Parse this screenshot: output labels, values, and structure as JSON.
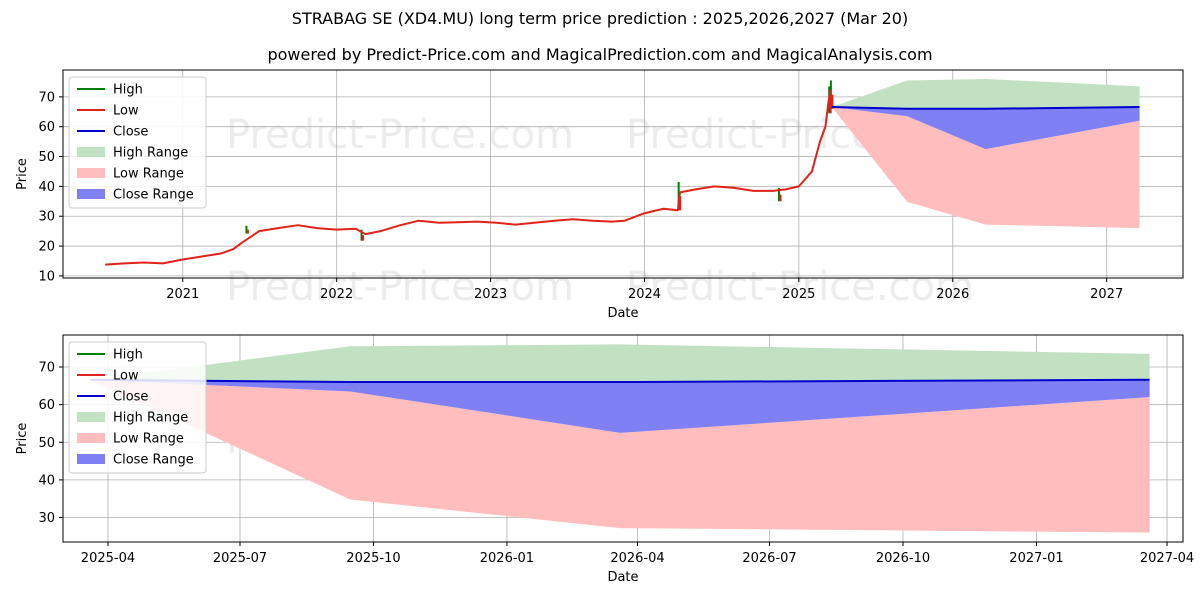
{
  "title": "STRABAG SE (XD4.MU) long term price prediction : 2025,2026,2027 (Mar 20)",
  "subtitle": "powered by Predict-Price.com and MagicalPrediction.com and MagicalAnalysis.com",
  "watermark": "Predict-Price.com",
  "colors": {
    "high": "#008000",
    "low": "#e0231a",
    "close": "#0000cc",
    "high_range": "#c2e0c2",
    "low_range": "#ffbdbd",
    "close_range": "#8080f5"
  },
  "legend": {
    "position": "top-left",
    "entries": [
      "High",
      "Low",
      "Close",
      "High Range",
      "Low Range",
      "Close Range"
    ]
  },
  "chart_data": [
    {
      "type": "line",
      "xlabel": "Date",
      "ylabel": "Price",
      "xlim": [
        "2020-03-23",
        "2027-07-01"
      ],
      "ylim": [
        9.3,
        79
      ],
      "xticks": [
        "2021",
        "2022",
        "2023",
        "2024",
        "2025",
        "2026",
        "2027"
      ],
      "xtick_dates": [
        "2021-01-01",
        "2022-01-01",
        "2023-01-01",
        "2024-01-01",
        "2025-01-01",
        "2026-01-01",
        "2027-01-01"
      ],
      "yticks": [
        10,
        20,
        30,
        40,
        50,
        60,
        70
      ],
      "grid": true,
      "history": {
        "dates": [
          "2020-07-01",
          "2020-08-15",
          "2020-10-01",
          "2020-11-15",
          "2021-01-01",
          "2021-02-15",
          "2021-04-01",
          "2021-05-01",
          "2021-05-20",
          "2021-07-01",
          "2021-08-15",
          "2021-10-01",
          "2021-11-15",
          "2022-01-01",
          "2022-02-15",
          "2022-03-10",
          "2022-04-15",
          "2022-06-01",
          "2022-07-15",
          "2022-09-01",
          "2022-10-15",
          "2022-12-01",
          "2023-01-15",
          "2023-03-01",
          "2023-04-15",
          "2023-06-01",
          "2023-07-15",
          "2023-09-01",
          "2023-10-15",
          "2023-11-15",
          "2024-01-01",
          "2024-02-15",
          "2024-03-20",
          "2024-03-25",
          "2024-05-01",
          "2024-06-15",
          "2024-08-01",
          "2024-09-15",
          "2024-11-01",
          "2024-12-01",
          "2025-01-01",
          "2025-02-01",
          "2025-02-20",
          "2025-03-05",
          "2025-03-12",
          "2025-03-17",
          "2025-03-20"
        ],
        "close": [
          13.8,
          14.2,
          14.5,
          14.2,
          15.5,
          16.5,
          17.5,
          19,
          21,
          25,
          26,
          27,
          26,
          25.5,
          25.8,
          24,
          25,
          27,
          28.5,
          27.8,
          28,
          28.2,
          27.8,
          27.2,
          27.8,
          28.5,
          29,
          28.5,
          28.2,
          28.5,
          31,
          32.5,
          32,
          38,
          39,
          40,
          39.5,
          38.5,
          38.5,
          39,
          40,
          45,
          55,
          60,
          68,
          72,
          66.6
        ],
        "spikes": [
          {
            "date": "2021-06-01",
            "low": 24.2,
            "high": 26.8
          },
          {
            "date": "2022-03-01",
            "low": 21.8,
            "high": 25.5
          },
          {
            "date": "2024-03-22",
            "low": 32.0,
            "high": 41.5
          },
          {
            "date": "2024-11-15",
            "low": 35.0,
            "high": 39.5
          },
          {
            "date": "2025-03-14",
            "low": 64.5,
            "high": 73.5
          },
          {
            "date": "2025-03-18",
            "low": 66.0,
            "high": 75.5
          }
        ]
      },
      "forecast": {
        "dates": [
          "2025-03-20",
          "2025-09-15",
          "2026-03-20",
          "2027-03-20"
        ],
        "close": [
          66.6,
          66.0,
          66.0,
          66.6
        ],
        "high_range": {
          "upper": [
            66.6,
            75.5,
            76.0,
            73.5
          ],
          "lower": [
            66.6,
            66.0,
            66.0,
            66.6
          ]
        },
        "close_range": {
          "upper": [
            66.6,
            66.0,
            66.0,
            66.6
          ],
          "lower": [
            66.6,
            63.5,
            52.5,
            62.0
          ]
        },
        "low_range": {
          "upper": [
            66.6,
            63.5,
            52.5,
            62.0
          ],
          "lower": [
            66.6,
            34.8,
            27.2,
            26.0
          ]
        }
      }
    },
    {
      "type": "line",
      "xlabel": "Date",
      "ylabel": "Price",
      "xlim": [
        "2025-03-01",
        "2027-04-12"
      ],
      "ylim": [
        23.5,
        78.5
      ],
      "xticks": [
        "2025-04",
        "2025-07",
        "2025-10",
        "2026-01",
        "2026-04",
        "2026-07",
        "2026-10",
        "2027-01",
        "2027-04"
      ],
      "xtick_dates": [
        "2025-04-01",
        "2025-07-01",
        "2025-10-01",
        "2026-01-01",
        "2026-04-01",
        "2026-07-01",
        "2026-10-01",
        "2027-01-01",
        "2027-04-01"
      ],
      "yticks": [
        30,
        40,
        50,
        60,
        70
      ],
      "grid": true,
      "forecast": {
        "dates": [
          "2025-03-20",
          "2025-09-15",
          "2026-03-20",
          "2027-03-20"
        ],
        "close": [
          66.6,
          66.0,
          66.0,
          66.6
        ],
        "high_range": {
          "upper": [
            66.6,
            75.5,
            76.0,
            73.5
          ],
          "lower": [
            66.6,
            66.0,
            66.0,
            66.6
          ]
        },
        "close_range": {
          "upper": [
            66.6,
            66.0,
            66.0,
            66.6
          ],
          "lower": [
            66.6,
            63.5,
            52.5,
            62.0
          ]
        },
        "low_range": {
          "upper": [
            66.6,
            63.5,
            52.5,
            62.0
          ],
          "lower": [
            66.6,
            34.8,
            27.2,
            26.0
          ]
        }
      }
    }
  ]
}
